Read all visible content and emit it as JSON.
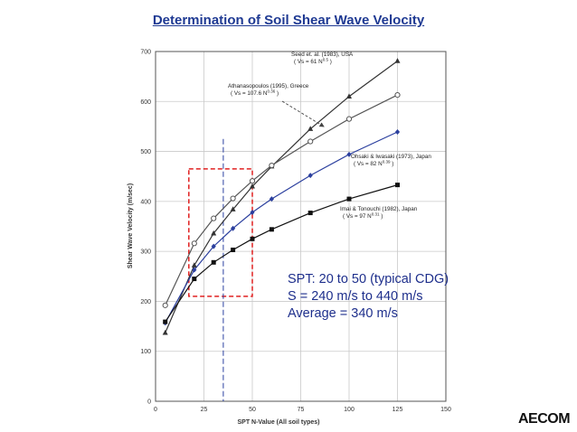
{
  "slide": {
    "title": "Determination of Soil Shear Wave Velocity",
    "logo": "AECOM"
  },
  "info_box": {
    "lines": [
      "SPT: 20 to 50 (typical CDG)",
      "S = 240 m/s to 440 m/s",
      "Average = 340 m/s"
    ]
  },
  "colors": {
    "title": "#1f3a93",
    "info_text": "#1e2f8c",
    "highlight_box": "#e02020",
    "average_line": "#2a3fa0",
    "series_default": "#444444",
    "series_ohsaki": "#2b3f9e"
  },
  "chart_data": {
    "type": "line",
    "xlabel": "SPT N-Value (All soil types)",
    "ylabel": "Shear Wave Velocity (m/sec)",
    "xlim": [
      0,
      150
    ],
    "ylim": [
      0,
      700
    ],
    "xticks": [
      0,
      25,
      50,
      75,
      100,
      125,
      150
    ],
    "yticks": [
      0,
      100,
      200,
      300,
      400,
      500,
      600,
      700
    ],
    "grid": true,
    "x": [
      5,
      20,
      30,
      40,
      50,
      60,
      80,
      100,
      125
    ],
    "series": [
      {
        "key": "seed",
        "marker": "triangle",
        "color": "#333333",
        "values": [
          137,
          272,
          336,
          384,
          430,
          470,
          545,
          610,
          681
        ],
        "label_lines": [
          "Seed et. al. (1983), USA",
          "( Vs = 61 N",
          "0.5",
          " )"
        ]
      },
      {
        "key": "athanasopoulos",
        "marker": "open-circle",
        "color": "#555555",
        "values": [
          192,
          316,
          366,
          406,
          441,
          472,
          520,
          565,
          613
        ],
        "label_lines": [
          "Athanasopoulos (1995), Greece",
          "( Vs = 107.6 N",
          "0.36",
          " )"
        ]
      },
      {
        "key": "ohsaki",
        "marker": "diamond",
        "color": "#2b3f9e",
        "values": [
          157,
          263,
          310,
          346,
          378,
          405,
          452,
          494,
          539
        ],
        "label_lines": [
          "Ohsaki & Iwasaki (1973), Japan",
          "( Vs = 82 N",
          "0.39",
          " )"
        ]
      },
      {
        "key": "imai",
        "marker": "square",
        "color": "#111111",
        "values": [
          159,
          245,
          278,
          303,
          325,
          344,
          377,
          405,
          433
        ],
        "label_lines": [
          "Imai & Tonouchi (1982), Japan",
          "( Vs = 97 N",
          "0.31",
          " )"
        ]
      }
    ],
    "highlight_region": {
      "x": [
        20,
        50
      ],
      "y": [
        210,
        465
      ]
    },
    "average_line_x": 35,
    "average_line_y": [
      0,
      525
    ]
  }
}
